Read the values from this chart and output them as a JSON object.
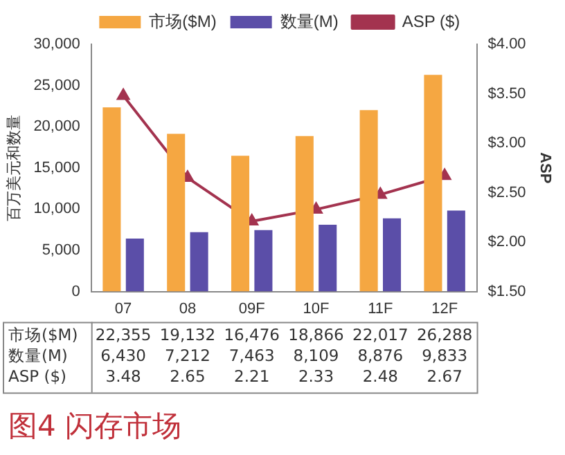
{
  "chart_data": {
    "type": "bar",
    "title": "图4 闪存市场",
    "ylabel": "百万美元和数量",
    "y2label": "ASP",
    "categories": [
      "07",
      "08",
      "09F",
      "10F",
      "11F",
      "12F"
    ],
    "series": [
      {
        "name": "市场($M)",
        "color": "#f5a742",
        "values": [
          22355,
          19132,
          16476,
          18866,
          22017,
          26288
        ],
        "value_labels": [
          "22,355",
          "19,132",
          "16,476",
          "18,866",
          "22,017",
          "26,288"
        ]
      },
      {
        "name": "数量(M)",
        "color": "#5b4ea8",
        "values": [
          6430,
          7212,
          7463,
          8109,
          8876,
          9833
        ],
        "value_labels": [
          "6,430",
          "7,212",
          "7,463",
          "8,109",
          "8,876",
          "9,833"
        ]
      },
      {
        "name": "ASP ($)",
        "type": "line",
        "axis": "y2",
        "color": "#a3334f",
        "marker": "triangle",
        "values": [
          3.48,
          2.65,
          2.21,
          2.33,
          2.48,
          2.67
        ],
        "value_labels": [
          "3.48",
          "2.65",
          "2.21",
          "2.33",
          "2.48",
          "2.67"
        ]
      }
    ],
    "ylim": [
      0,
      30000
    ],
    "yticks": [
      {
        "value": 0,
        "label": "0"
      },
      {
        "value": 5000,
        "label": "5,000"
      },
      {
        "value": 10000,
        "label": "10,000"
      },
      {
        "value": 15000,
        "label": "15,000"
      },
      {
        "value": 20000,
        "label": "20,000"
      },
      {
        "value": 25000,
        "label": "25,000"
      },
      {
        "value": 30000,
        "label": "30,000"
      }
    ],
    "y2lim": [
      1.5,
      4
    ],
    "y2ticks": [
      {
        "value": 1.5,
        "label": "$1.50"
      },
      {
        "value": 2,
        "label": "$2.00"
      },
      {
        "value": 2.5,
        "label": "$2.50"
      },
      {
        "value": 3,
        "label": "$3.00"
      },
      {
        "value": 3.5,
        "label": "$3.50"
      },
      {
        "value": 4,
        "label": "$4.00"
      }
    ],
    "legend": "top",
    "grid": false
  }
}
